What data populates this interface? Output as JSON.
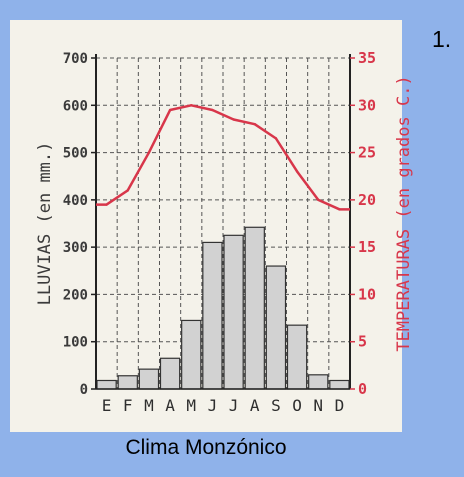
{
  "figure_number": "1.",
  "caption": "Clima Monzónico",
  "colors": {
    "background": "#8fb2ea",
    "paper": "#f4f2ea",
    "temperature": "#d8364a",
    "bars": "#d2d2d2",
    "axis": "#3b3b3b"
  },
  "chart_data": {
    "type": "bar",
    "categories": [
      "E",
      "F",
      "M",
      "A",
      "M",
      "J",
      "J",
      "A",
      "S",
      "O",
      "N",
      "D"
    ],
    "ylabel": "LLUVIAS (en mm.)",
    "ylabel2": "TEMPERATURAS (en grados C.)",
    "ylim": [
      0,
      700
    ],
    "y2lim": [
      0,
      35
    ],
    "yticks": [
      "0",
      "100",
      "200",
      "300",
      "400",
      "500",
      "600",
      "700"
    ],
    "y2ticks": [
      "0",
      "5",
      "10",
      "15",
      "20",
      "25",
      "30",
      "35"
    ],
    "grid": true,
    "series": [
      {
        "name": "Lluvias",
        "kind": "bar",
        "axis": "left",
        "values": [
          18,
          28,
          42,
          65,
          145,
          310,
          325,
          342,
          260,
          135,
          30,
          18
        ]
      },
      {
        "name": "Temperaturas",
        "kind": "line",
        "axis": "right",
        "values": [
          19.5,
          21,
          25,
          29.5,
          30,
          29.5,
          28.5,
          28,
          26.5,
          23,
          20,
          19
        ]
      }
    ]
  }
}
